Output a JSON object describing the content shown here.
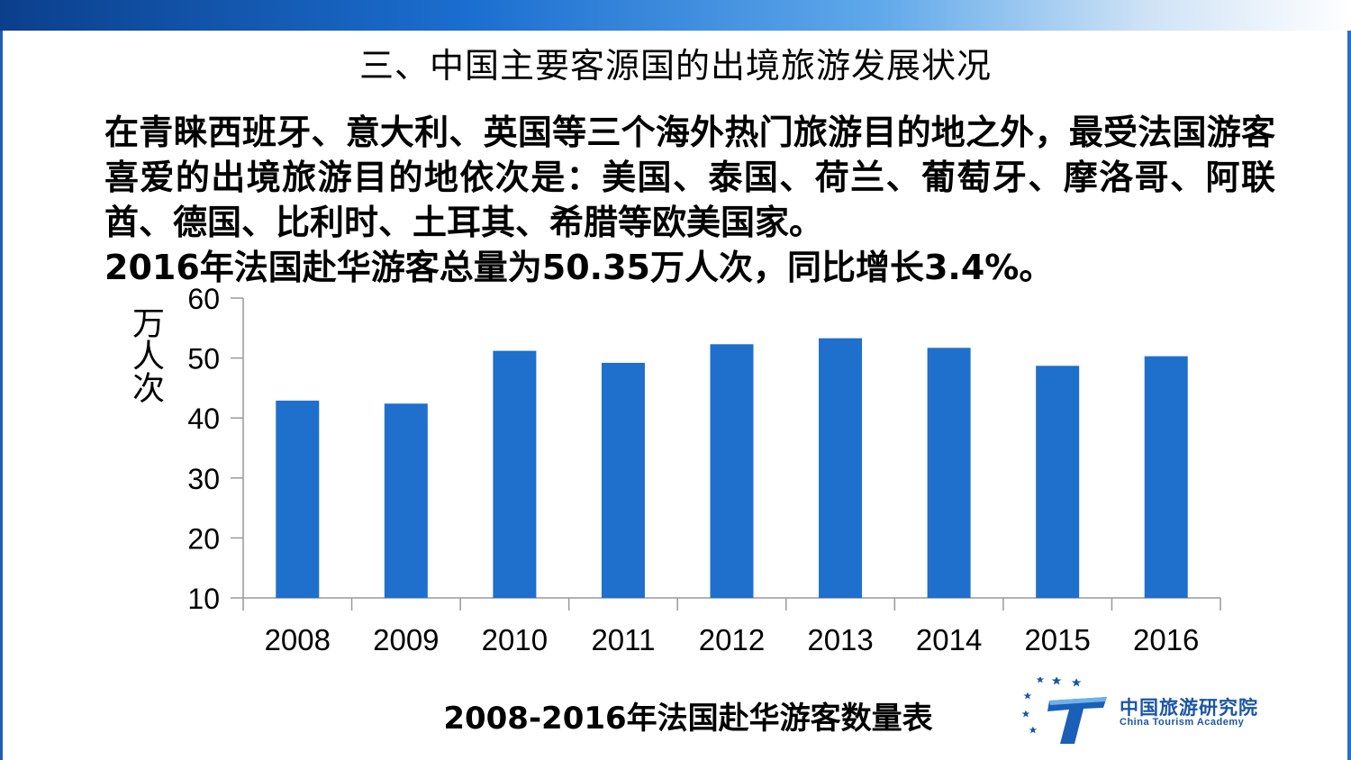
{
  "title": "三、中国主要客源国的出境旅游发展状况",
  "paragraph": {
    "text": "在青睐西班牙、意大利、英国等三个海外热门旅游目的地之外，最受法国游客喜爱的出境旅游目的地依次是：美国、泰国、荷兰、葡萄牙、摩洛哥、阿联酋、德国、比利时、土耳其、希腊等欧美国家。",
    "highlight": "2016年法国赴华游客总量为50.35万人次，同比增长3.4%。"
  },
  "colors": {
    "bar": "#1f6fcc",
    "axis": "#999999",
    "accent": "#1a55a8"
  },
  "chart_data": {
    "type": "bar",
    "title": "2008-2016年法国赴华游客数量表",
    "ylabel": "万人次",
    "xlabel": "",
    "categories": [
      "2008",
      "2009",
      "2010",
      "2011",
      "2012",
      "2013",
      "2014",
      "2015",
      "2016"
    ],
    "values": [
      42.9,
      42.4,
      51.2,
      49.2,
      52.3,
      53.3,
      51.7,
      48.7,
      50.3
    ],
    "ylim": [
      10,
      60
    ],
    "yticks": [
      10,
      20,
      30,
      40,
      50,
      60
    ],
    "grid": false,
    "legend": "none"
  },
  "logo": {
    "name_cn": "中国旅游研究院",
    "name_en": "China Tourism Academy",
    "icon": "t-stars-logo-icon"
  }
}
